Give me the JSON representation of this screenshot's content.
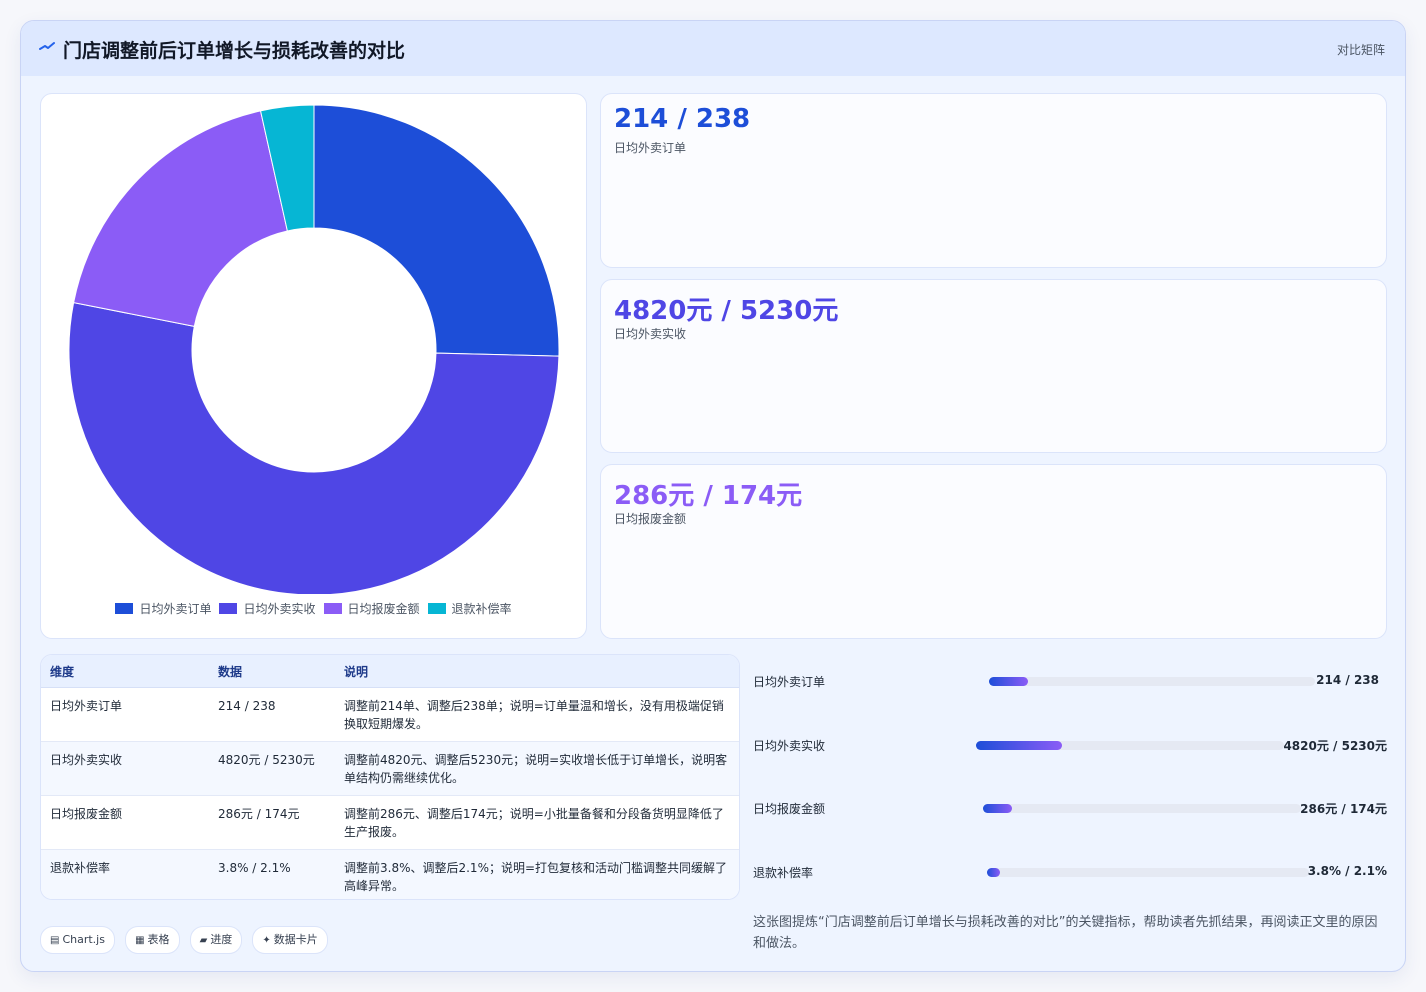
{
  "header": {
    "title": "门店调整前后订单增长与损耗改善的对比",
    "right_label": "对比矩阵"
  },
  "colors": {
    "blue": "#1d4ed8",
    "indigo": "#4f46e5",
    "violet": "#8b5cf6",
    "cyan": "#06b6d4"
  },
  "chart_data": {
    "type": "pie",
    "variant": "doughnut",
    "title": "",
    "categories": [
      "日均外卖订单",
      "日均外卖实收",
      "日均报废金额",
      "退款补偿率"
    ],
    "values": [
      238,
      5230,
      174,
      2.1
    ],
    "values_before": [
      214,
      4820,
      286,
      3.8
    ],
    "note": "Chart data uses the after-adjustment values; slices drawn from pie shares, not raw data units.",
    "slice_shares_pct": [
      25.4,
      52.7,
      18.4,
      3.5
    ],
    "colors": [
      "#1d4ed8",
      "#4f46e5",
      "#8b5cf6",
      "#06b6d4"
    ],
    "legend_position": "bottom"
  },
  "kpis": [
    {
      "value": "214 / 238",
      "label": "日均外卖订单",
      "color": "#1d4ed8"
    },
    {
      "value": "4820元 / 5230元",
      "label": "日均外卖实收",
      "color": "#4f46e5"
    },
    {
      "value": "286元 / 174元",
      "label": "日均报废金额",
      "color": "#8b5cf6"
    }
  ],
  "table": {
    "headers": [
      "维度",
      "数据",
      "说明"
    ],
    "rows": [
      {
        "dim": "日均外卖订单",
        "data": "214 / 238",
        "desc": "调整前214单、调整后238单；说明=订单量温和增长，没有用极端促销换取短期爆发。"
      },
      {
        "dim": "日均外卖实收",
        "data": "4820元 / 5230元",
        "desc": "调整前4820元、调整后5230元；说明=实收增长低于订单增长，说明客单结构仍需继续优化。"
      },
      {
        "dim": "日均报废金额",
        "data": "286元 / 174元",
        "desc": "调整前286元、调整后174元；说明=小批量备餐和分段备货明显降低了生产报废。"
      },
      {
        "dim": "退款补偿率",
        "data": "3.8% / 2.1%",
        "desc": "调整前3.8%、调整后2.1%；说明=打包复核和活动门槛调整共同缓解了高峰异常。"
      }
    ]
  },
  "progress": [
    {
      "label": "日均外卖订单",
      "value": "214 / 238",
      "fraction": 0.12
    },
    {
      "label": "日均外卖实收",
      "value": "4820元 / 5230元",
      "fraction": 0.28
    },
    {
      "label": "日均报废金额",
      "value": "286元 / 174元",
      "fraction": 0.09
    },
    {
      "label": "退款补偿率",
      "value": "3.8% / 2.1%",
      "fraction": 0.04
    }
  ],
  "chips": [
    {
      "icon": "▤",
      "label": "Chart.js"
    },
    {
      "icon": "▦",
      "label": "表格"
    },
    {
      "icon": "▰",
      "label": "进度"
    },
    {
      "icon": "✦",
      "label": "数据卡片"
    }
  ],
  "summary": "这张图提炼“门店调整前后订单增长与损耗改善的对比”的关键指标，帮助读者先抓结果，再阅读正文里的原因和做法。"
}
